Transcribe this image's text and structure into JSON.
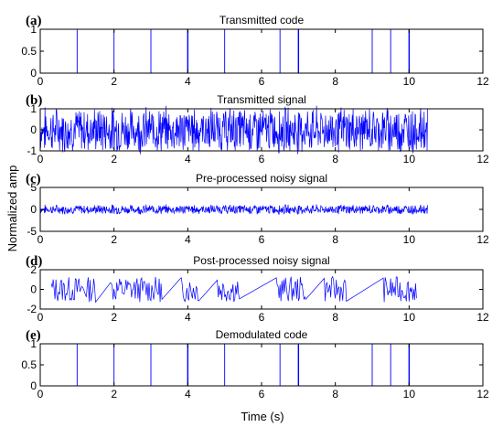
{
  "chart_data": {
    "shared_xlabel": "Time (s)",
    "shared_ylabel": "Normalized amp",
    "x_ticks": [
      0,
      2,
      4,
      6,
      8,
      10,
      12
    ],
    "xlim": [
      0,
      12
    ],
    "grid": false,
    "line_color": "#0000ff",
    "panels": [
      {
        "type": "line",
        "letter": "(a)",
        "title": "Transmitted code",
        "ylim": [
          0,
          1
        ],
        "y_ticks": [
          0,
          0.5,
          1
        ],
        "y_tick_labels": [
          "0",
          "0.5",
          "1"
        ],
        "impulse_times": [
          1,
          2,
          3,
          4,
          5,
          6.5,
          7,
          9,
          9.5,
          10
        ],
        "impulse_height": 1
      },
      {
        "type": "line",
        "letter": "(b)",
        "title": "Transmitted signal",
        "ylim": [
          -1,
          1
        ],
        "y_ticks": [
          -1,
          0,
          1
        ],
        "y_tick_labels": [
          "-1",
          "0",
          "1"
        ],
        "signal": "modulated sinusoid, amplitude envelope 0 to 1",
        "x_range": [
          0,
          10.5
        ]
      },
      {
        "type": "line",
        "letter": "(c)",
        "title": "Pre-processed noisy signal",
        "ylim": [
          -5,
          5
        ],
        "y_ticks": [
          -5,
          0,
          5
        ],
        "y_tick_labels": [
          "-5",
          "0",
          "5"
        ],
        "signal": "noise, approx. ±1",
        "x_range": [
          0,
          10.5
        ]
      },
      {
        "type": "line",
        "letter": "(d)",
        "title": "Post-processed noisy signal",
        "ylim": [
          -2,
          2
        ],
        "y_ticks": [
          -2,
          0,
          2
        ],
        "y_tick_labels": [
          "-2",
          "0",
          "2"
        ],
        "segments": [
          [
            0.3,
            1.5
          ],
          [
            1.9,
            3.3
          ],
          [
            3.8,
            4.3
          ],
          [
            4.8,
            5.4
          ],
          [
            6.4,
            7.2
          ],
          [
            7.7,
            8.3
          ],
          [
            9.3,
            10.2
          ]
        ]
      },
      {
        "type": "line",
        "letter": "(e)",
        "title": "Demodulated code",
        "ylim": [
          0,
          1
        ],
        "y_ticks": [
          0,
          0.5,
          1
        ],
        "y_tick_labels": [
          "0",
          "0.5",
          "1"
        ],
        "impulse_times": [
          1,
          2,
          3,
          4,
          5,
          6.5,
          7,
          9,
          9.5,
          10
        ],
        "impulse_height": 1
      }
    ]
  }
}
